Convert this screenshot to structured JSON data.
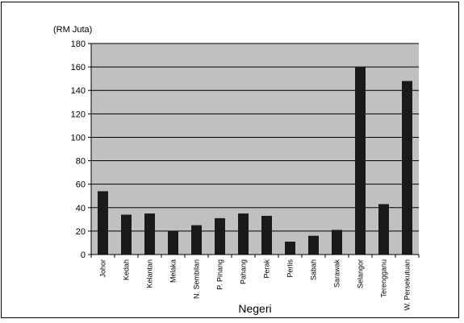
{
  "chart_data": {
    "type": "bar",
    "unit_label": "(RM Juta)",
    "xlabel": "Negeri",
    "ylim": [
      0,
      180
    ],
    "yticks": [
      0,
      20,
      40,
      60,
      80,
      100,
      120,
      140,
      160,
      180
    ],
    "grid": true,
    "legend": "none",
    "colors": {
      "plot_bg": "#c0c0c0",
      "bar": "#1a1a1a",
      "grid": "#000000"
    },
    "categories": [
      "Johor",
      "Kedah",
      "Kelantan",
      "Melaka",
      "N. Sembilan",
      "P. Pinang",
      "Pahang",
      "Perak",
      "Perlis",
      "Sabah",
      "Sarawak",
      "Selangor",
      "Terengganu",
      "W. Persekutuan"
    ],
    "values": [
      54,
      34,
      35,
      20,
      25,
      31,
      35,
      33,
      11,
      16,
      21,
      160,
      43,
      148
    ]
  }
}
